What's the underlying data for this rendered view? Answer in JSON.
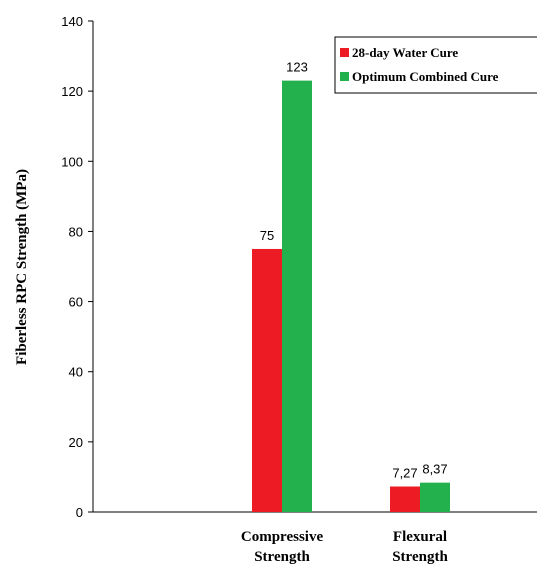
{
  "chart_data": {
    "type": "bar",
    "categories": [
      [
        "Compressive",
        "Strength"
      ],
      [
        "Flexural",
        "Strength"
      ]
    ],
    "ylabel": "Fiberless RPC Strength (MPa)",
    "ylim": [
      0,
      140
    ],
    "yticks": [
      0,
      20,
      40,
      60,
      80,
      100,
      120,
      140
    ],
    "grid": false,
    "legend_position": "top-right",
    "series": [
      {
        "name": "28-day Water Cure",
        "color": "#ed1c24",
        "values": [
          75,
          7.27
        ],
        "labels": [
          "75",
          "7,27"
        ]
      },
      {
        "name": "Optimum Combined Cure",
        "color": "#22b14c",
        "values": [
          123,
          8.37
        ],
        "labels": [
          "123",
          "8,37"
        ]
      }
    ]
  }
}
